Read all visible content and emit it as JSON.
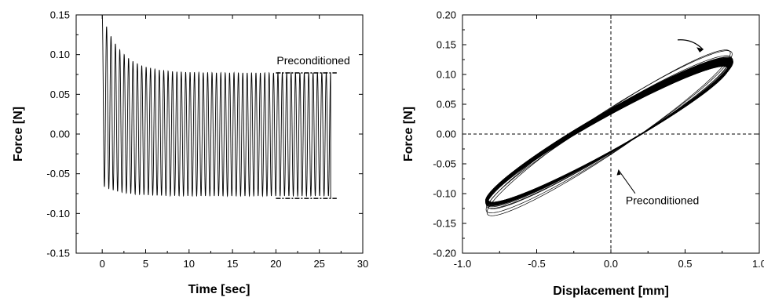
{
  "chart_data": [
    {
      "type": "line",
      "xlabel": "Time [sec]",
      "ylabel": "Force [N]",
      "xlim": [
        -3,
        30
      ],
      "ylim": [
        -0.15,
        0.15
      ],
      "xticks": [
        "0",
        "5",
        "10",
        "15",
        "20",
        "25",
        "30"
      ],
      "yticks": [
        "-0.15",
        "-0.10",
        "-0.05",
        "0.00",
        "0.05",
        "0.10",
        "0.15"
      ],
      "grid": false,
      "series": [
        {
          "signal": "damped cyclic force",
          "t_start": 0,
          "t_end": 26.3,
          "cycles": 52,
          "initial_peak": 0.15,
          "steady_peak": 0.077,
          "initial_trough": -0.065,
          "steady_trough": -0.078,
          "color": "#000000"
        }
      ],
      "annotations": [
        {
          "text": "Preconditioned",
          "x_from": 20,
          "x_to": 27,
          "y_upper": 0.077,
          "y_lower": -0.081
        }
      ]
    },
    {
      "type": "line",
      "xlabel": "Displacement [mm]",
      "ylabel": "Force [N]",
      "xlim": [
        -1.0,
        1.0
      ],
      "ylim": [
        -0.2,
        0.2
      ],
      "xticks": [
        "-1.0",
        "-0.5",
        "0.0",
        "0.5",
        "1.0"
      ],
      "yticks": [
        "-0.20",
        "-0.15",
        "-0.10",
        "-0.05",
        "0.00",
        "0.05",
        "0.10",
        "0.15",
        "0.20"
      ],
      "grid": false,
      "reference_lines": {
        "x": 0,
        "y": 0,
        "style": "dashed"
      },
      "series": [
        {
          "signal": "hysteresis loops",
          "loops": 40,
          "x_range": [
            -0.84,
            0.8
          ],
          "y_range": [
            -0.08,
            0.118
          ],
          "color": "#000000"
        }
      ],
      "annotations": [
        {
          "text": "Preconditioned",
          "arrow_to": [
            0.05,
            -0.06
          ]
        }
      ]
    }
  ]
}
